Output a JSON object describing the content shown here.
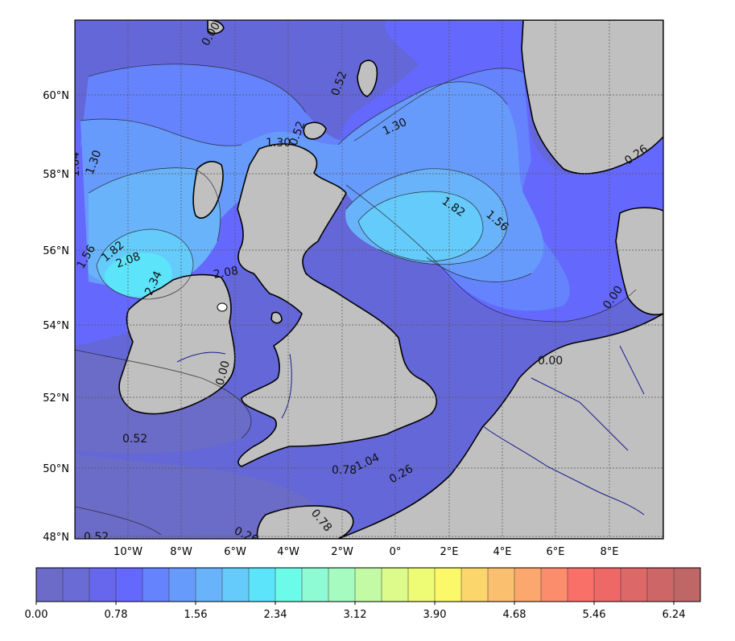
{
  "map": {
    "lat_ticks": [
      "60°N",
      "58°N",
      "56°N",
      "54°N",
      "52°N",
      "50°N",
      "48°N"
    ],
    "lon_ticks": [
      "10°W",
      "8°W",
      "6°W",
      "4°W",
      "2°W",
      "0°",
      "2°E",
      "4°E",
      "6°E",
      "8°E"
    ],
    "contour_labels": [
      "0.26",
      "0.52",
      "0.78",
      "1.04",
      "1.30",
      "1.56",
      "1.82",
      "2.08",
      "2.34",
      "0.00",
      "1.30",
      "1.82",
      "1.56",
      "1.30",
      "0.52",
      "0.26",
      "0.78",
      "1.04",
      "0.52",
      "0.26",
      "0.52",
      "0.00",
      "0.00",
      "2.08",
      "0.00"
    ],
    "colors": {
      "land": "#c0c0c0",
      "coast": "#000000",
      "border": "#1a1a8c",
      "grid": "#555555"
    }
  },
  "colorbar": {
    "tick_labels": [
      "0.00",
      "0.78",
      "1.56",
      "2.34",
      "3.12",
      "3.90",
      "4.68",
      "5.46",
      "6.24"
    ],
    "bins": 25,
    "colors": [
      "#6c6bc8",
      "#6b6bd6",
      "#6767ee",
      "#6468fc",
      "#6483fc",
      "#679bfb",
      "#69b3fa",
      "#65cbfa",
      "#5ce4fb",
      "#6cfbe9",
      "#8efbd4",
      "#a5fbc0",
      "#c2fba4",
      "#dcfb8a",
      "#eefb74",
      "#fbf86a",
      "#fbd66d",
      "#fbc06f",
      "#fba76e",
      "#fb8d6d",
      "#f97068",
      "#ee6868",
      "#dd6868",
      "#cd6767",
      "#bf6767"
    ]
  }
}
